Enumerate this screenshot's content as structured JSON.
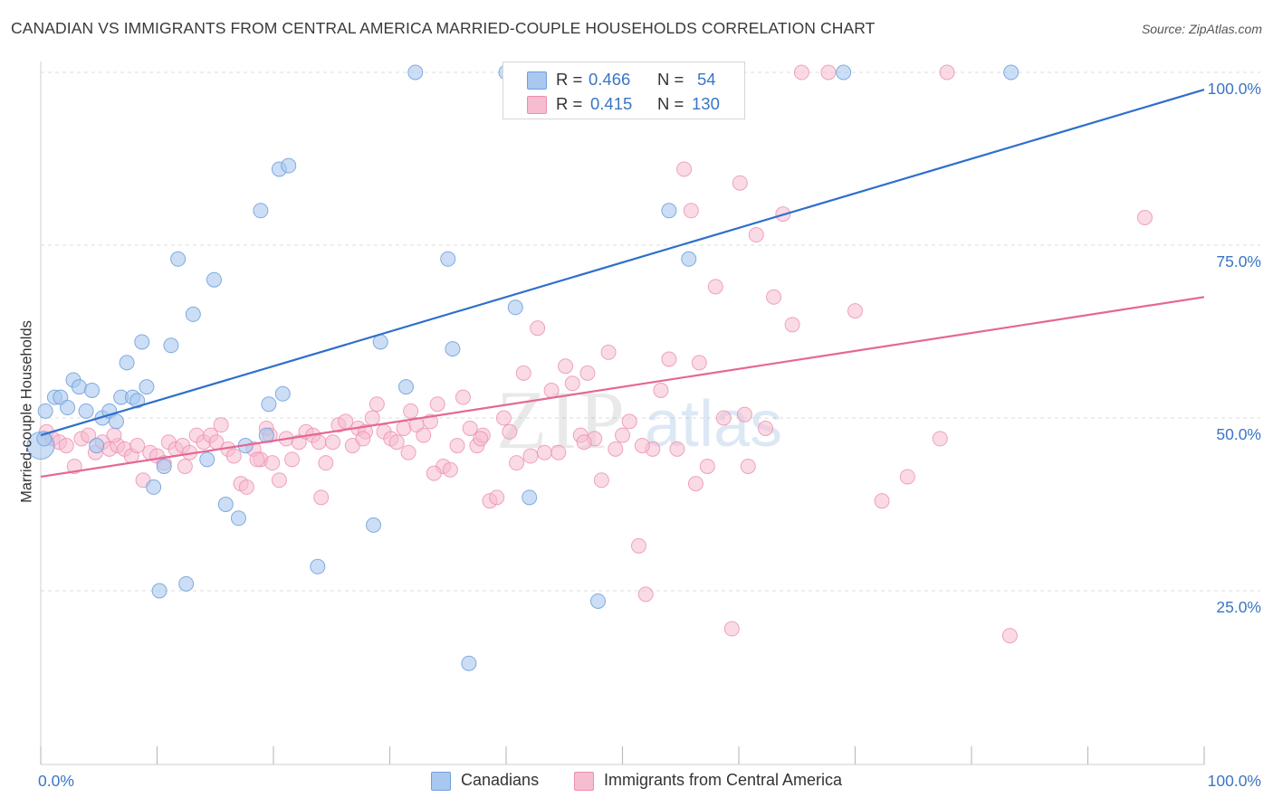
{
  "title": "CANADIAN VS IMMIGRANTS FROM CENTRAL AMERICA MARRIED-COUPLE HOUSEHOLDS CORRELATION CHART",
  "source": "Source: ZipAtlas.com",
  "watermark": {
    "zip": "ZIP",
    "atlas": "atlas"
  },
  "colors": {
    "blue_fill": "#a9c8ef",
    "blue_stroke": "#6f9fdc",
    "blue_line": "#2f6fcb",
    "pink_fill": "#f6bcd0",
    "pink_stroke": "#ec8fb0",
    "pink_line": "#e46892",
    "grid": "#dedede",
    "axis_label": "#3a75c4"
  },
  "legend": {
    "rows": [
      {
        "r_label": "R =",
        "r_value": "0.466",
        "n_label": "N =",
        "n_value": "54"
      },
      {
        "r_label": "R =",
        "r_value": "0.415",
        "n_label": "N =",
        "n_value": "130"
      }
    ]
  },
  "bottom_legend": {
    "series_a": "Canadians",
    "series_b": "Immigrants from Central America"
  },
  "chart_data": {
    "type": "scatter",
    "ylabel": "Married-couple Households",
    "xlim": [
      0,
      100
    ],
    "ylim": [
      0,
      105
    ],
    "x_tick_labels": {
      "left": "0.0%",
      "right": "100.0%"
    },
    "y_ticks": [
      {
        "value": 25,
        "label": "25.0%"
      },
      {
        "value": 50,
        "label": "50.0%"
      },
      {
        "value": 75,
        "label": "75.0%"
      },
      {
        "value": 100,
        "label": "100.0%"
      }
    ],
    "series": [
      {
        "name": "Canadians",
        "trend": {
          "x": [
            0,
            100
          ],
          "y": [
            47.5,
            97.5
          ]
        },
        "points": [
          [
            0.0,
            46.0
          ],
          [
            0.4,
            51.0
          ],
          [
            1.2,
            53.0
          ],
          [
            1.7,
            53.0
          ],
          [
            2.3,
            51.5
          ],
          [
            2.8,
            55.5
          ],
          [
            3.3,
            54.5
          ],
          [
            3.9,
            51.0
          ],
          [
            4.4,
            54.0
          ],
          [
            4.8,
            46.0
          ],
          [
            5.3,
            50.0
          ],
          [
            5.9,
            51.0
          ],
          [
            6.5,
            49.5
          ],
          [
            6.9,
            53.0
          ],
          [
            7.4,
            58.0
          ],
          [
            7.9,
            53.0
          ],
          [
            8.3,
            52.5
          ],
          [
            8.7,
            61.0
          ],
          [
            9.1,
            54.5
          ],
          [
            9.7,
            40.0
          ],
          [
            10.2,
            25.0
          ],
          [
            10.6,
            43.0
          ],
          [
            11.2,
            60.5
          ],
          [
            11.8,
            73.0
          ],
          [
            12.5,
            26.0
          ],
          [
            13.1,
            65.0
          ],
          [
            14.3,
            44.0
          ],
          [
            14.9,
            70.0
          ],
          [
            15.9,
            37.5
          ],
          [
            17.0,
            35.5
          ],
          [
            17.6,
            46.0
          ],
          [
            18.9,
            80.0
          ],
          [
            19.4,
            47.5
          ],
          [
            19.6,
            52.0
          ],
          [
            20.5,
            86.0
          ],
          [
            20.8,
            53.5
          ],
          [
            21.3,
            86.5
          ],
          [
            23.8,
            28.5
          ],
          [
            28.6,
            34.5
          ],
          [
            29.2,
            61.0
          ],
          [
            31.4,
            54.5
          ],
          [
            32.2,
            100.0
          ],
          [
            35.0,
            73.0
          ],
          [
            35.4,
            60.0
          ],
          [
            36.8,
            14.5
          ],
          [
            40.0,
            100.0
          ],
          [
            40.8,
            66.0
          ],
          [
            42.0,
            38.5
          ],
          [
            47.9,
            23.5
          ],
          [
            54.0,
            80.0
          ],
          [
            55.7,
            73.0
          ],
          [
            69.0,
            100.0
          ],
          [
            83.4,
            100.0
          ],
          [
            0.3,
            47.0
          ]
        ]
      },
      {
        "name": "Immigrants from Central America",
        "trend": {
          "x": [
            0,
            100
          ],
          "y": [
            41.5,
            67.5
          ]
        },
        "points": [
          [
            0.5,
            48.0
          ],
          [
            1.0,
            47.0
          ],
          [
            1.6,
            46.5
          ],
          [
            2.2,
            46.0
          ],
          [
            2.9,
            43.0
          ],
          [
            3.5,
            47.0
          ],
          [
            4.1,
            47.5
          ],
          [
            4.7,
            45.0
          ],
          [
            5.3,
            46.5
          ],
          [
            5.9,
            45.5
          ],
          [
            6.6,
            46.0
          ],
          [
            7.2,
            45.5
          ],
          [
            7.8,
            44.5
          ],
          [
            8.3,
            46.0
          ],
          [
            8.8,
            41.0
          ],
          [
            9.4,
            45.0
          ],
          [
            10.0,
            44.5
          ],
          [
            10.6,
            43.5
          ],
          [
            11.0,
            46.5
          ],
          [
            11.6,
            45.5
          ],
          [
            12.2,
            46.0
          ],
          [
            12.8,
            45.0
          ],
          [
            13.4,
            47.5
          ],
          [
            14.0,
            46.5
          ],
          [
            14.6,
            47.5
          ],
          [
            15.1,
            46.5
          ],
          [
            15.5,
            49.0
          ],
          [
            16.1,
            45.5
          ],
          [
            16.6,
            44.5
          ],
          [
            17.2,
            40.5
          ],
          [
            17.7,
            40.0
          ],
          [
            18.3,
            45.5
          ],
          [
            18.9,
            44.0
          ],
          [
            19.4,
            48.5
          ],
          [
            19.9,
            43.5
          ],
          [
            20.5,
            41.0
          ],
          [
            21.1,
            47.0
          ],
          [
            21.6,
            44.0
          ],
          [
            22.2,
            46.5
          ],
          [
            22.8,
            48.0
          ],
          [
            23.4,
            47.5
          ],
          [
            23.9,
            46.5
          ],
          [
            24.5,
            43.5
          ],
          [
            25.1,
            46.5
          ],
          [
            25.6,
            49.0
          ],
          [
            26.2,
            49.5
          ],
          [
            26.8,
            46.0
          ],
          [
            27.3,
            48.5
          ],
          [
            27.9,
            48.0
          ],
          [
            28.5,
            50.0
          ],
          [
            28.9,
            52.0
          ],
          [
            29.5,
            48.0
          ],
          [
            30.1,
            47.0
          ],
          [
            30.6,
            46.5
          ],
          [
            31.2,
            48.5
          ],
          [
            31.8,
            51.0
          ],
          [
            32.3,
            49.0
          ],
          [
            32.9,
            47.5
          ],
          [
            33.5,
            49.5
          ],
          [
            34.1,
            52.0
          ],
          [
            34.6,
            43.0
          ],
          [
            35.2,
            42.5
          ],
          [
            35.8,
            46.0
          ],
          [
            36.3,
            53.0
          ],
          [
            36.9,
            48.5
          ],
          [
            37.5,
            46.0
          ],
          [
            38.0,
            47.5
          ],
          [
            38.6,
            38.0
          ],
          [
            39.2,
            38.5
          ],
          [
            39.8,
            50.0
          ],
          [
            40.3,
            48.0
          ],
          [
            40.9,
            43.5
          ],
          [
            41.5,
            56.5
          ],
          [
            42.1,
            44.5
          ],
          [
            42.7,
            63.0
          ],
          [
            43.3,
            45.0
          ],
          [
            43.9,
            54.0
          ],
          [
            44.5,
            45.0
          ],
          [
            45.1,
            57.5
          ],
          [
            45.7,
            55.0
          ],
          [
            46.4,
            47.5
          ],
          [
            47.0,
            56.5
          ],
          [
            47.6,
            47.0
          ],
          [
            48.2,
            41.0
          ],
          [
            48.8,
            59.5
          ],
          [
            49.4,
            45.5
          ],
          [
            50.0,
            47.5
          ],
          [
            50.6,
            49.5
          ],
          [
            51.4,
            31.5
          ],
          [
            52.0,
            24.5
          ],
          [
            52.6,
            45.5
          ],
          [
            53.3,
            54.0
          ],
          [
            54.0,
            58.5
          ],
          [
            54.7,
            45.5
          ],
          [
            55.3,
            86.0
          ],
          [
            55.9,
            80.0
          ],
          [
            56.6,
            58.0
          ],
          [
            57.3,
            43.0
          ],
          [
            58.0,
            69.0
          ],
          [
            58.7,
            50.0
          ],
          [
            59.4,
            19.5
          ],
          [
            60.1,
            84.0
          ],
          [
            60.8,
            43.0
          ],
          [
            61.5,
            76.5
          ],
          [
            62.3,
            48.5
          ],
          [
            63.0,
            67.5
          ],
          [
            63.8,
            79.5
          ],
          [
            64.6,
            63.5
          ],
          [
            65.4,
            100.0
          ],
          [
            67.7,
            100.0
          ],
          [
            70.0,
            65.5
          ],
          [
            72.3,
            38.0
          ],
          [
            74.5,
            41.5
          ],
          [
            77.3,
            47.0
          ],
          [
            77.9,
            100.0
          ],
          [
            83.3,
            18.5
          ],
          [
            94.9,
            79.0
          ],
          [
            31.6,
            45.0
          ],
          [
            24.1,
            38.5
          ],
          [
            18.6,
            44.0
          ],
          [
            12.4,
            43.0
          ],
          [
            6.3,
            47.5
          ],
          [
            27.7,
            47.0
          ],
          [
            46.7,
            46.5
          ],
          [
            51.7,
            46.0
          ],
          [
            56.3,
            40.5
          ],
          [
            60.5,
            50.5
          ],
          [
            33.8,
            42.0
          ],
          [
            37.8,
            47.0
          ],
          [
            19.7,
            47.5
          ]
        ]
      }
    ]
  }
}
